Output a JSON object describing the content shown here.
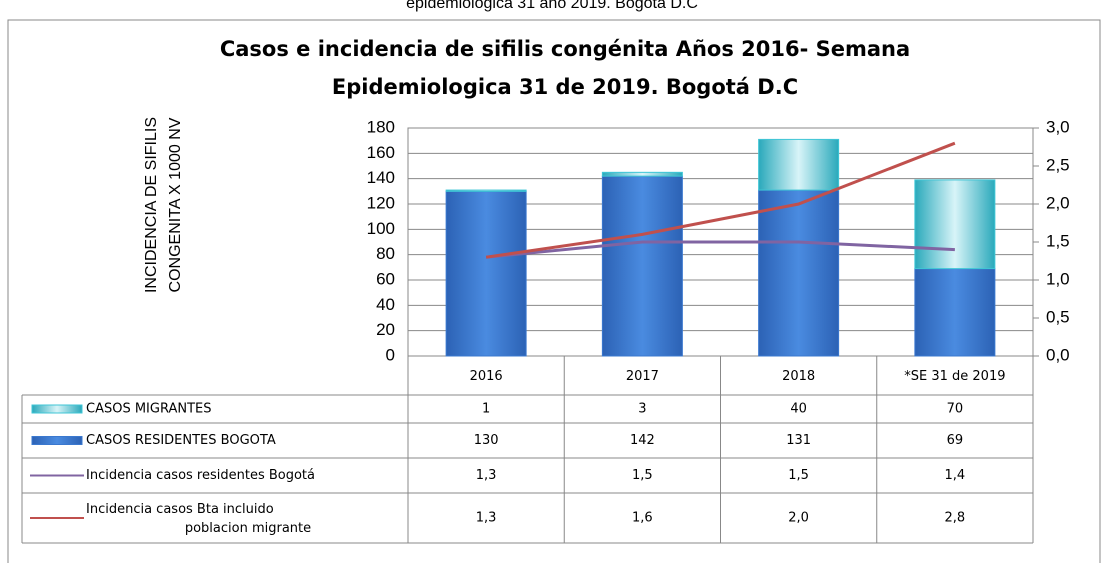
{
  "page_caption": "epidemiologica 31 año 2019. Bogotá D.C",
  "chart_data": {
    "type": "bar",
    "stacked": true,
    "title": [
      "Casos e incidencia de sifilis congénita Años 2016- Semana",
      "Epidemiologica 31 de 2019. Bogotá D.C"
    ],
    "ylabel": [
      "INCIDENCIA DE SIFILIS",
      "CONGENITA X 1000 NV"
    ],
    "categories": [
      "2016",
      "2017",
      "2018",
      "*SE 31 de 2019"
    ],
    "series": [
      {
        "name": "CASOS MIGRANTES",
        "type": "bar",
        "color": "#3fc6d6",
        "values": [
          1,
          3,
          40,
          70
        ]
      },
      {
        "name": "CASOS RESIDENTES BOGOTA",
        "type": "bar",
        "color": "#3a78cf",
        "values": [
          130,
          142,
          131,
          69
        ]
      },
      {
        "name": "Incidencia  casos  residentes Bogotá",
        "type": "line",
        "axis": "y2",
        "color": "#8064a2",
        "values": [
          1.3,
          1.5,
          1.5,
          1.4
        ],
        "value_labels": [
          "1,3",
          "1,5",
          "1,5",
          "1,4"
        ]
      },
      {
        "name": "Incidencia casos Bta incluido poblacion migrante",
        "type": "line",
        "axis": "y2",
        "color": "#c0504d",
        "values": [
          1.3,
          1.6,
          2.0,
          2.8
        ],
        "value_labels": [
          "1,3",
          "1,6",
          "2,0",
          "2,8"
        ]
      }
    ],
    "ylim": [
      0,
      180
    ],
    "yticks": [
      0,
      20,
      40,
      60,
      80,
      100,
      120,
      140,
      160,
      180
    ],
    "y2lim": [
      0,
      3
    ],
    "y2ticks": [
      {
        "value": 0,
        "label": "0,0"
      },
      {
        "value": 0.5,
        "label": "0,5"
      },
      {
        "value": 1,
        "label": "1,0"
      },
      {
        "value": 1.5,
        "label": "1,5"
      },
      {
        "value": 2,
        "label": "2,0"
      },
      {
        "value": 2.5,
        "label": "2,5"
      },
      {
        "value": 3,
        "label": "3,0"
      }
    ],
    "grid": true,
    "data_table": true
  }
}
